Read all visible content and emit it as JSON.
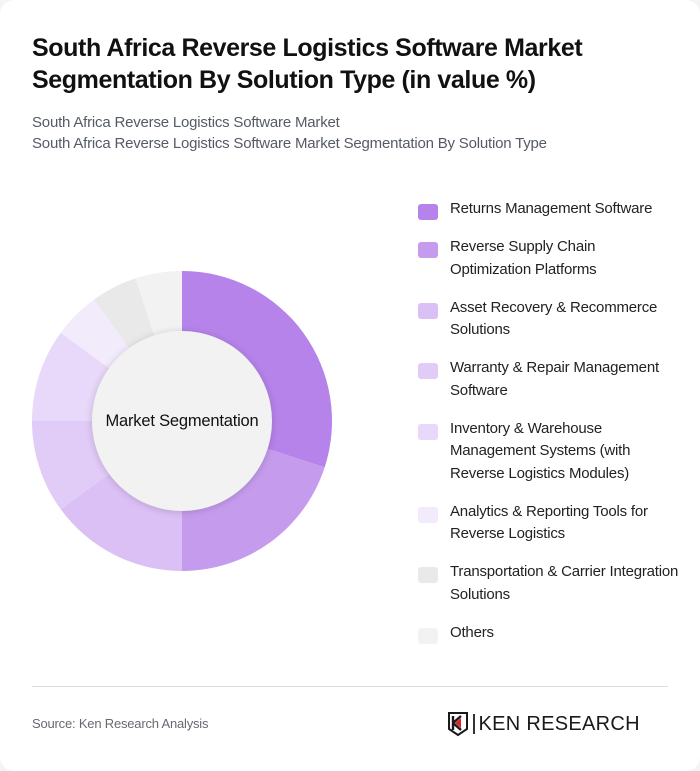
{
  "header": {
    "title": "South Africa Reverse Logistics Software Market Segmentation By Solution Type (in value %)",
    "subtitle_line1": "South Africa Reverse Logistics Software Market",
    "subtitle_line2": "South Africa Reverse Logistics Software Market Segmentation By Solution Type"
  },
  "chart": {
    "center_label": "Market Segmentation"
  },
  "legend": {
    "items": [
      {
        "label": "Returns Management Software",
        "color": "#b583ea"
      },
      {
        "label": "Reverse Supply Chain Optimization Platforms",
        "color": "#c59ced"
      },
      {
        "label": "Asset Recovery & Recommerce Solutions",
        "color": "#dbc0f5"
      },
      {
        "label": "Warranty & Repair Management Software",
        "color": "#e1cbf7"
      },
      {
        "label": "Inventory & Warehouse Management Systems (with Reverse Logistics Modules)",
        "color": "#e8d8f9"
      },
      {
        "label": "Analytics & Reporting Tools for Reverse Logistics",
        "color": "#f2ebfc"
      },
      {
        "label": "Transportation & Carrier Integration Solutions",
        "color": "#e9e9e9"
      },
      {
        "label": "Others",
        "color": "#f2f2f2"
      }
    ]
  },
  "footer": {
    "source": "Source: Ken Research Analysis",
    "logo_text": "KEN RESEARCH",
    "logo_accent": "#d9252a"
  },
  "chart_data": {
    "type": "pie",
    "subtype": "donut",
    "title": "South Africa Reverse Logistics Software Market Segmentation By Solution Type (in value %)",
    "center_label": "Market Segmentation",
    "categories": [
      "Returns Management Software",
      "Reverse Supply Chain Optimization Platforms",
      "Asset Recovery & Recommerce Solutions",
      "Warranty & Repair Management Software",
      "Inventory & Warehouse Management Systems (with Reverse Logistics Modules)",
      "Analytics & Reporting Tools for Reverse Logistics",
      "Transportation & Carrier Integration Solutions",
      "Others"
    ],
    "values": [
      30,
      20,
      15,
      10,
      10,
      5,
      5,
      5
    ],
    "colors": [
      "#b583ea",
      "#c59ced",
      "#dbc0f5",
      "#e1cbf7",
      "#e8d8f9",
      "#f2ebfc",
      "#e9e9e9",
      "#f2f2f2"
    ],
    "unit": "%",
    "start_angle": "12 o'clock, clockwise",
    "legend_position": "right"
  }
}
